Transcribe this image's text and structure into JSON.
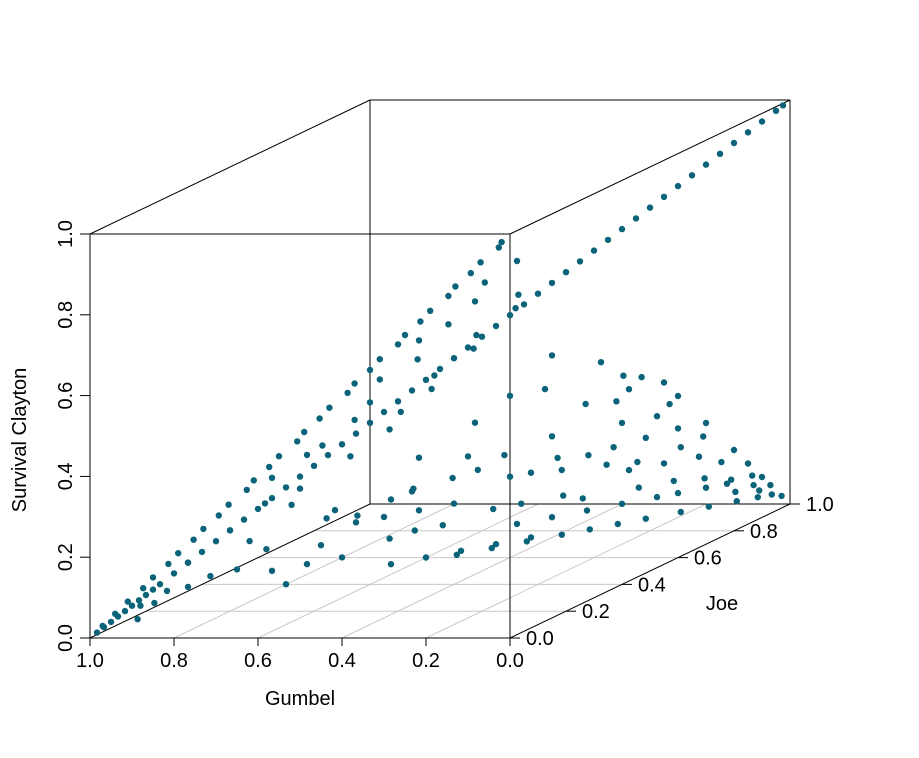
{
  "chart_data": {
    "type": "scatter",
    "projection": "3d",
    "xlabel": "Gumbel",
    "ylabel": "Joe",
    "zlabel": "Survival Clayton",
    "x_ticks": [
      "1.0",
      "0.8",
      "0.6",
      "0.4",
      "0.2",
      "0.0"
    ],
    "y_ticks": [
      "0.0",
      "0.2",
      "0.4",
      "0.6",
      "0.8",
      "1.0"
    ],
    "z_ticks": [
      "0.0",
      "0.2",
      "0.4",
      "0.6",
      "0.8",
      "1.0"
    ],
    "xlim": [
      1.0,
      0.0
    ],
    "ylim": [
      0.0,
      1.0
    ],
    "zlim": [
      0.0,
      1.0
    ],
    "grid": "floor",
    "point_color": "#0a6378",
    "points": [
      [
        0.99,
        0.01,
        0.01
      ],
      [
        0.98,
        0.02,
        0.02
      ],
      [
        0.97,
        0.03,
        0.03
      ],
      [
        0.96,
        0.04,
        0.04
      ],
      [
        0.95,
        0.05,
        0.05
      ],
      [
        0.94,
        0.06,
        0.06
      ],
      [
        0.93,
        0.07,
        0.07
      ],
      [
        0.92,
        0.08,
        0.08
      ],
      [
        0.91,
        0.09,
        0.09
      ],
      [
        0.9,
        0.1,
        0.1
      ],
      [
        0.88,
        0.12,
        0.12
      ],
      [
        0.86,
        0.14,
        0.14
      ],
      [
        0.84,
        0.16,
        0.16
      ],
      [
        0.82,
        0.18,
        0.18
      ],
      [
        0.8,
        0.2,
        0.2
      ],
      [
        0.78,
        0.22,
        0.22
      ],
      [
        0.76,
        0.24,
        0.24
      ],
      [
        0.74,
        0.26,
        0.26
      ],
      [
        0.72,
        0.28,
        0.28
      ],
      [
        0.7,
        0.3,
        0.3
      ],
      [
        0.68,
        0.32,
        0.32
      ],
      [
        0.66,
        0.34,
        0.34
      ],
      [
        0.64,
        0.36,
        0.36
      ],
      [
        0.62,
        0.38,
        0.38
      ],
      [
        0.6,
        0.4,
        0.4
      ],
      [
        0.58,
        0.42,
        0.42
      ],
      [
        0.56,
        0.44,
        0.44
      ],
      [
        0.54,
        0.46,
        0.46
      ],
      [
        0.52,
        0.48,
        0.48
      ],
      [
        0.5,
        0.5,
        0.5
      ],
      [
        0.48,
        0.52,
        0.52
      ],
      [
        0.46,
        0.54,
        0.54
      ],
      [
        0.44,
        0.56,
        0.56
      ],
      [
        0.42,
        0.58,
        0.58
      ],
      [
        0.4,
        0.6,
        0.6
      ],
      [
        0.38,
        0.62,
        0.62
      ],
      [
        0.36,
        0.64,
        0.64
      ],
      [
        0.34,
        0.66,
        0.66
      ],
      [
        0.32,
        0.68,
        0.68
      ],
      [
        0.3,
        0.7,
        0.7
      ],
      [
        0.28,
        0.72,
        0.72
      ],
      [
        0.26,
        0.74,
        0.74
      ],
      [
        0.24,
        0.76,
        0.76
      ],
      [
        0.22,
        0.78,
        0.78
      ],
      [
        0.2,
        0.8,
        0.8
      ],
      [
        0.18,
        0.82,
        0.82
      ],
      [
        0.16,
        0.84,
        0.84
      ],
      [
        0.14,
        0.86,
        0.86
      ],
      [
        0.12,
        0.88,
        0.88
      ],
      [
        0.1,
        0.9,
        0.9
      ],
      [
        0.08,
        0.92,
        0.92
      ],
      [
        0.06,
        0.94,
        0.94
      ],
      [
        0.04,
        0.96,
        0.96
      ],
      [
        0.02,
        0.98,
        0.98
      ],
      [
        0.01,
        0.99,
        0.99
      ],
      [
        0.97,
        0.0,
        0.03
      ],
      [
        0.94,
        0.0,
        0.06
      ],
      [
        0.91,
        0.0,
        0.09
      ],
      [
        0.88,
        0.01,
        0.12
      ],
      [
        0.85,
        0.0,
        0.15
      ],
      [
        0.82,
        0.01,
        0.18
      ],
      [
        0.79,
        0.0,
        0.21
      ],
      [
        0.76,
        0.01,
        0.24
      ],
      [
        0.73,
        0.0,
        0.27
      ],
      [
        0.7,
        0.01,
        0.3
      ],
      [
        0.67,
        0.0,
        0.33
      ],
      [
        0.64,
        0.02,
        0.36
      ],
      [
        0.61,
        0.0,
        0.39
      ],
      [
        0.58,
        0.01,
        0.42
      ],
      [
        0.55,
        0.0,
        0.45
      ],
      [
        0.52,
        0.02,
        0.48
      ],
      [
        0.49,
        0.0,
        0.51
      ],
      [
        0.46,
        0.01,
        0.54
      ],
      [
        0.43,
        0.0,
        0.57
      ],
      [
        0.4,
        0.02,
        0.6
      ],
      [
        0.37,
        0.0,
        0.63
      ],
      [
        0.34,
        0.01,
        0.66
      ],
      [
        0.31,
        0.0,
        0.69
      ],
      [
        0.28,
        0.02,
        0.72
      ],
      [
        0.25,
        0.0,
        0.75
      ],
      [
        0.22,
        0.01,
        0.78
      ],
      [
        0.19,
        0.0,
        0.81
      ],
      [
        0.16,
        0.02,
        0.84
      ],
      [
        0.13,
        0.0,
        0.87
      ],
      [
        0.1,
        0.01,
        0.9
      ],
      [
        0.07,
        0.0,
        0.93
      ],
      [
        0.04,
        0.02,
        0.96
      ],
      [
        0.02,
        0.0,
        0.98
      ],
      [
        0.8,
        0.05,
        0.17
      ],
      [
        0.72,
        0.08,
        0.24
      ],
      [
        0.65,
        0.1,
        0.3
      ],
      [
        0.6,
        0.05,
        0.38
      ],
      [
        0.55,
        0.1,
        0.42
      ],
      [
        0.5,
        0.08,
        0.45
      ],
      [
        0.45,
        0.12,
        0.5
      ],
      [
        0.4,
        0.1,
        0.55
      ],
      [
        0.35,
        0.06,
        0.62
      ],
      [
        0.3,
        0.12,
        0.65
      ],
      [
        0.25,
        0.05,
        0.72
      ],
      [
        0.2,
        0.08,
        0.75
      ],
      [
        0.15,
        0.1,
        0.8
      ],
      [
        0.1,
        0.06,
        0.86
      ],
      [
        0.05,
        0.1,
        0.9
      ],
      [
        0.75,
        0.15,
        0.12
      ],
      [
        0.7,
        0.12,
        0.2
      ],
      [
        0.62,
        0.15,
        0.28
      ],
      [
        0.58,
        0.12,
        0.33
      ],
      [
        0.48,
        0.15,
        0.4
      ],
      [
        0.42,
        0.2,
        0.45
      ],
      [
        0.38,
        0.18,
        0.5
      ],
      [
        0.32,
        0.2,
        0.55
      ],
      [
        0.28,
        0.15,
        0.6
      ],
      [
        0.22,
        0.2,
        0.65
      ],
      [
        0.18,
        0.15,
        0.7
      ],
      [
        0.12,
        0.2,
        0.75
      ],
      [
        0.08,
        0.15,
        0.8
      ],
      [
        0.6,
        0.1,
        0.1
      ],
      [
        0.55,
        0.15,
        0.18
      ],
      [
        0.5,
        0.2,
        0.22
      ],
      [
        0.45,
        0.05,
        0.3
      ],
      [
        0.4,
        0.25,
        0.28
      ],
      [
        0.35,
        0.2,
        0.38
      ],
      [
        0.3,
        0.3,
        0.35
      ],
      [
        0.25,
        0.25,
        0.45
      ],
      [
        0.2,
        0.3,
        0.5
      ],
      [
        0.15,
        0.35,
        0.5
      ],
      [
        0.1,
        0.3,
        0.6
      ],
      [
        0.05,
        0.4,
        0.55
      ],
      [
        0.05,
        0.5,
        0.45
      ],
      [
        0.0,
        0.6,
        0.4
      ],
      [
        0.1,
        0.55,
        0.35
      ],
      [
        0.2,
        0.45,
        0.35
      ],
      [
        0.3,
        0.45,
        0.25
      ],
      [
        0.4,
        0.4,
        0.2
      ],
      [
        0.45,
        0.35,
        0.2
      ],
      [
        0.5,
        0.3,
        0.2
      ],
      [
        0.05,
        0.6,
        0.35
      ],
      [
        0.0,
        0.7,
        0.3
      ],
      [
        0.05,
        0.75,
        0.2
      ],
      [
        0.0,
        0.8,
        0.2
      ],
      [
        0.05,
        0.85,
        0.1
      ],
      [
        0.1,
        0.7,
        0.2
      ],
      [
        0.15,
        0.65,
        0.2
      ],
      [
        0.0,
        0.9,
        0.1
      ],
      [
        0.02,
        0.5,
        0.48
      ],
      [
        0.03,
        0.45,
        0.5
      ],
      [
        0.0,
        0.85,
        0.15
      ],
      [
        0.02,
        0.92,
        0.06
      ],
      [
        0.05,
        0.88,
        0.07
      ],
      [
        0.08,
        0.82,
        0.1
      ],
      [
        0.12,
        0.78,
        0.1
      ],
      [
        0.15,
        0.75,
        0.1
      ],
      [
        0.2,
        0.7,
        0.1
      ],
      [
        0.25,
        0.65,
        0.1
      ],
      [
        0.3,
        0.6,
        0.1
      ],
      [
        0.35,
        0.55,
        0.1
      ],
      [
        0.18,
        0.55,
        0.27
      ],
      [
        0.22,
        0.5,
        0.28
      ],
      [
        0.28,
        0.4,
        0.32
      ],
      [
        0.12,
        0.45,
        0.43
      ],
      [
        0.08,
        0.5,
        0.42
      ],
      [
        0.5,
        0.45,
        0.05
      ],
      [
        0.45,
        0.5,
        0.05
      ],
      [
        0.55,
        0.4,
        0.05
      ],
      [
        0.4,
        0.55,
        0.05
      ],
      [
        0.35,
        0.6,
        0.05
      ],
      [
        0.0,
        0.93,
        0.07
      ],
      [
        0.01,
        0.88,
        0.11
      ],
      [
        0.03,
        0.8,
        0.17
      ],
      [
        0.02,
        0.72,
        0.26
      ],
      [
        0.04,
        0.66,
        0.3
      ],
      [
        0.0,
        0.55,
        0.45
      ],
      [
        0.02,
        0.6,
        0.38
      ],
      [
        0.06,
        0.7,
        0.24
      ],
      [
        0.09,
        0.62,
        0.29
      ],
      [
        0.14,
        0.58,
        0.28
      ],
      [
        0.6,
        0.3,
        0.1
      ],
      [
        0.65,
        0.25,
        0.1
      ],
      [
        0.7,
        0.2,
        0.1
      ],
      [
        0.68,
        0.15,
        0.17
      ],
      [
        0.78,
        0.1,
        0.12
      ],
      [
        0.85,
        0.05,
        0.1
      ],
      [
        0.82,
        0.08,
        0.1
      ],
      [
        0.88,
        0.05,
        0.07
      ],
      [
        0.9,
        0.03,
        0.07
      ],
      [
        0.92,
        0.05,
        0.03
      ],
      [
        0.52,
        0.35,
        0.13
      ],
      [
        0.48,
        0.38,
        0.14
      ],
      [
        0.44,
        0.42,
        0.14
      ],
      [
        0.36,
        0.48,
        0.16
      ],
      [
        0.32,
        0.52,
        0.16
      ],
      [
        0.26,
        0.58,
        0.16
      ],
      [
        0.24,
        0.62,
        0.14
      ],
      [
        0.16,
        0.7,
        0.14
      ],
      [
        0.11,
        0.75,
        0.14
      ],
      [
        0.07,
        0.8,
        0.13
      ],
      [
        0.04,
        0.85,
        0.11
      ],
      [
        0.02,
        0.9,
        0.08
      ],
      [
        0.01,
        0.95,
        0.04
      ],
      [
        0.0,
        0.97,
        0.03
      ],
      [
        0.03,
        0.93,
        0.04
      ],
      [
        0.06,
        0.9,
        0.04
      ],
      [
        0.1,
        0.86,
        0.04
      ],
      [
        0.14,
        0.82,
        0.04
      ],
      [
        0.19,
        0.77,
        0.04
      ],
      [
        0.23,
        0.73,
        0.04
      ],
      [
        0.27,
        0.69,
        0.04
      ],
      [
        0.31,
        0.65,
        0.04
      ],
      [
        0.36,
        0.6,
        0.04
      ],
      [
        0.41,
        0.55,
        0.04
      ],
      [
        0.46,
        0.5,
        0.04
      ],
      [
        0.57,
        0.2,
        0.23
      ],
      [
        0.53,
        0.25,
        0.22
      ],
      [
        0.47,
        0.28,
        0.25
      ],
      [
        0.43,
        0.3,
        0.27
      ],
      [
        0.37,
        0.35,
        0.28
      ],
      [
        0.33,
        0.38,
        0.29
      ],
      [
        0.27,
        0.48,
        0.25
      ],
      [
        0.23,
        0.53,
        0.24
      ],
      [
        0.17,
        0.6,
        0.23
      ],
      [
        0.13,
        0.65,
        0.22
      ]
    ]
  }
}
